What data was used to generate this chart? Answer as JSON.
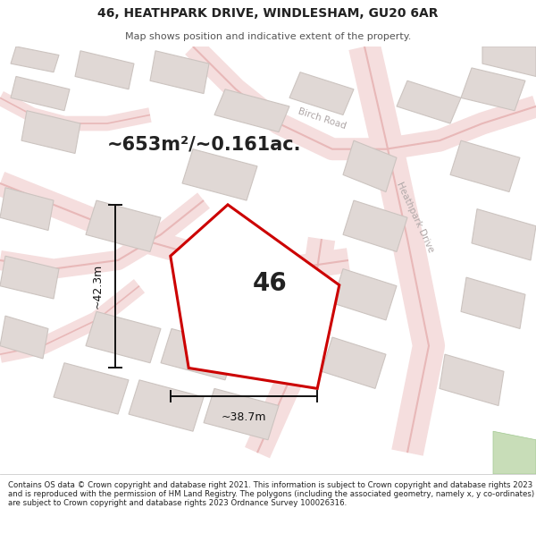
{
  "title": "46, HEATHPARK DRIVE, WINDLESHAM, GU20 6AR",
  "subtitle": "Map shows position and indicative extent of the property.",
  "area_text": "~653m²/~0.161ac.",
  "property_number": "46",
  "dim_width": "~38.7m",
  "dim_height": "~42.3m",
  "footer": "Contains OS data © Crown copyright and database right 2021. This information is subject to Crown copyright and database rights 2023 and is reproduced with the permission of HM Land Registry. The polygons (including the associated geometry, namely x, y co-ordinates) are subject to Crown copyright and database rights 2023 Ordnance Survey 100026316.",
  "map_bg": "#f2eded",
  "building_face": "#e0d8d5",
  "building_edge": "#ccC4C0",
  "road_fill": "#f5dede",
  "road_edge": "#e8b8b8",
  "property_fill": "#ffffff",
  "property_edge": "#cc0000",
  "green_fill": "#c8ddb8",
  "road_label_color": "#b0a8a8",
  "dim_color": "#111111",
  "text_dark": "#222222",
  "text_gray": "#555555"
}
